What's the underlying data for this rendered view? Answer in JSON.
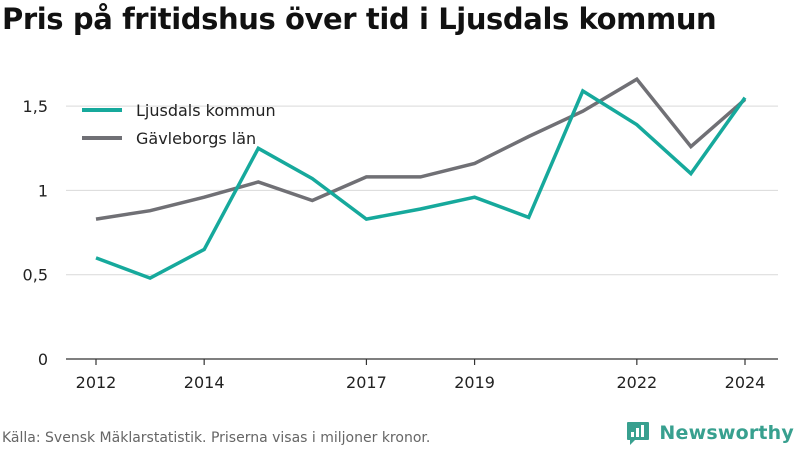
{
  "title": "Pris på fritidshus över tid i Ljusdals kommun",
  "footer": "Källa: Svensk Mäklarstatistik. Priserna visas i miljoner kronor.",
  "brand": {
    "name": "Newsworthy",
    "icon": "newsworthy-bar-chart-icon"
  },
  "colors": {
    "primary": "#16a99c",
    "secondary": "#707075",
    "grid": "#d9d9d9",
    "axis": "#333333",
    "brand": "#38a08f"
  },
  "chart_data": {
    "type": "line",
    "title": "Pris på fritidshus över tid i Ljusdals kommun",
    "xlabel": "",
    "ylabel": "",
    "x": [
      2012,
      2013,
      2014,
      2015,
      2016,
      2017,
      2018,
      2019,
      2020,
      2021,
      2022,
      2023,
      2024
    ],
    "xticks": [
      2012,
      2014,
      2017,
      2019,
      2022,
      2024
    ],
    "yticks": [
      0,
      0.5,
      1,
      1.5
    ],
    "ytick_labels": [
      "0",
      "0,5",
      "1",
      "1,5"
    ],
    "ylim": [
      0,
      1.75
    ],
    "grid": "horizontal",
    "legend_position": "top-left",
    "series": [
      {
        "name": "Ljusdals kommun",
        "color": "#16a99c",
        "values": [
          0.6,
          0.48,
          0.65,
          1.25,
          1.07,
          0.83,
          0.89,
          0.96,
          0.84,
          1.59,
          1.39,
          1.1,
          1.55
        ]
      },
      {
        "name": "Gävleborgs län",
        "color": "#707075",
        "values": [
          0.83,
          0.88,
          0.96,
          1.05,
          0.94,
          1.08,
          1.08,
          1.16,
          1.32,
          1.47,
          1.66,
          1.26,
          1.54
        ]
      }
    ]
  }
}
